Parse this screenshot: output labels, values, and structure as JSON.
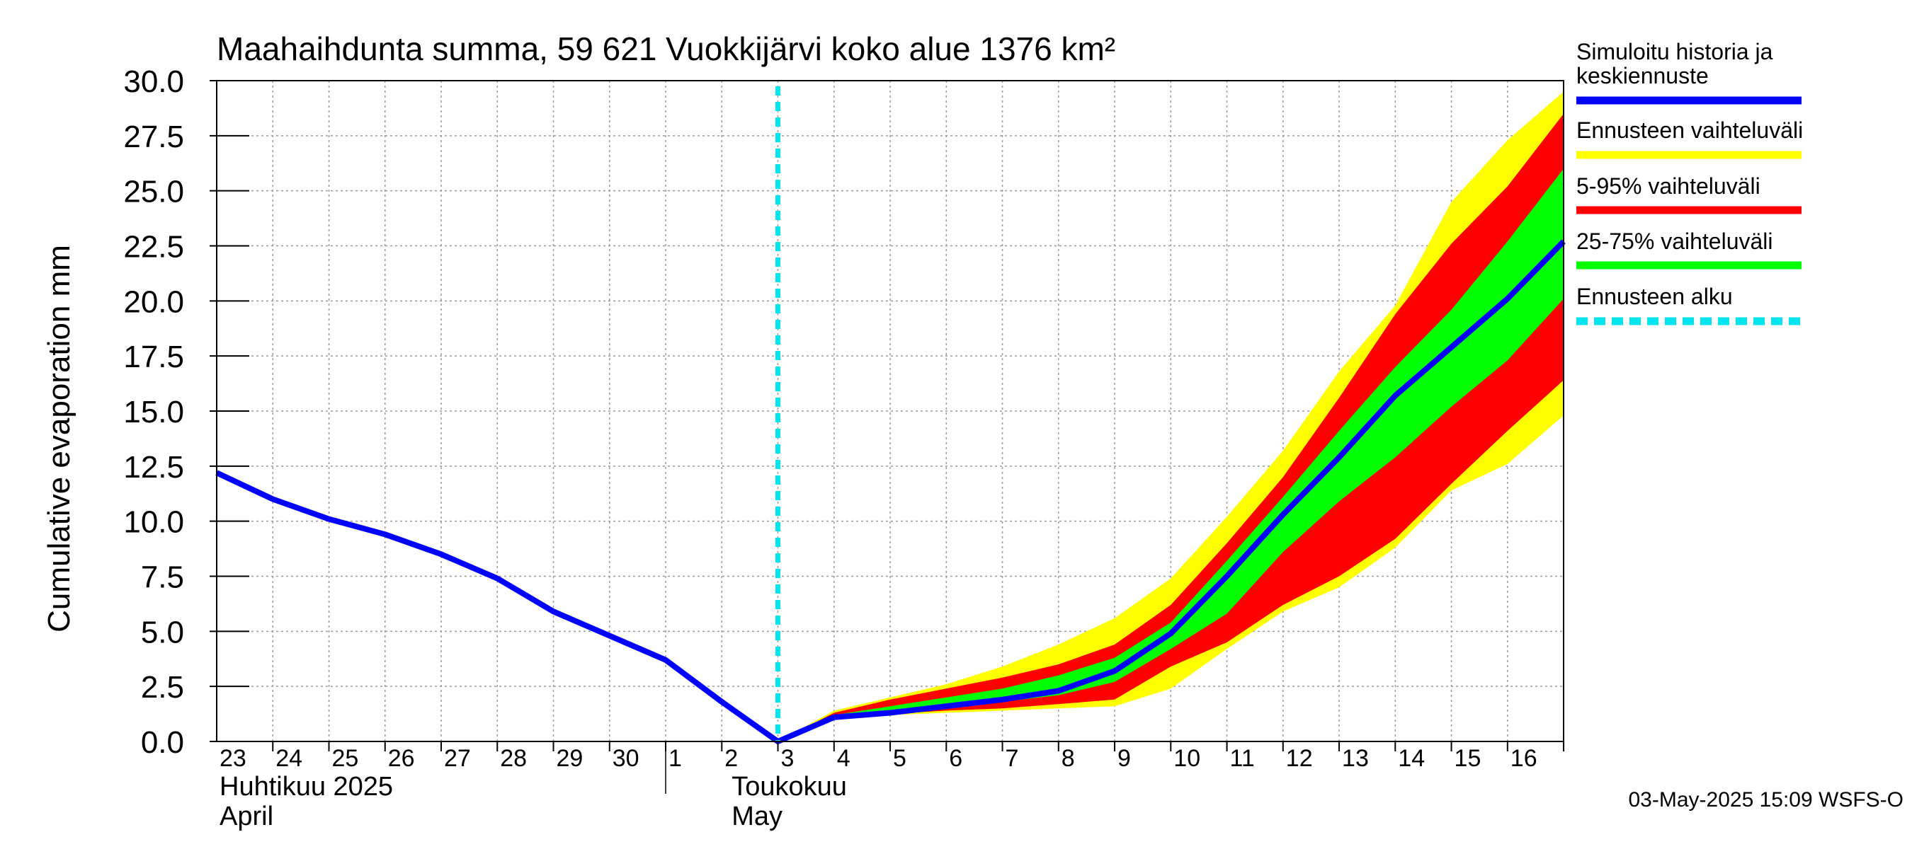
{
  "chart_data": {
    "type": "area",
    "title": "Maahaihdunta summa, 59 621 Vuokkijärvi koko alue 1376 km²",
    "ylabel": "Cumulative evaporation   mm",
    "ylim": [
      0,
      30
    ],
    "yticks": [
      "0.0",
      "2.5",
      "5.0",
      "7.5",
      "10.0",
      "12.5",
      "15.0",
      "17.5",
      "20.0",
      "22.5",
      "25.0",
      "27.5",
      "30.0"
    ],
    "xlim": [
      "2025-04-23",
      "2025-05-16 23:59"
    ],
    "grid": true,
    "x_tick_labels": [
      "23",
      "24",
      "25",
      "26",
      "27",
      "28",
      "29",
      "30",
      "1",
      "2",
      "3",
      "4",
      "5",
      "6",
      "7",
      "8",
      "9",
      "10",
      "11",
      "12",
      "13",
      "14",
      "15",
      "16"
    ],
    "month_labels": [
      {
        "line1": "Huhtikuu  2025",
        "line2": "April"
      },
      {
        "line1": "Toukokuu",
        "line2": "May"
      }
    ],
    "forecast_start": "2025-05-03 00:00",
    "history": {
      "x": [
        "2025-04-23",
        "2025-04-24",
        "2025-04-25",
        "2025-04-26",
        "2025-04-27",
        "2025-04-28",
        "2025-04-29",
        "2025-04-30",
        "2025-05-01",
        "2025-05-02",
        "2025-05-03"
      ],
      "values": [
        12.2,
        11.0,
        10.1,
        9.4,
        8.5,
        7.4,
        5.9,
        4.8,
        3.7,
        1.8,
        0.0
      ]
    },
    "forecast_x": [
      "2025-05-03",
      "2025-05-04",
      "2025-05-05",
      "2025-05-06",
      "2025-05-07",
      "2025-05-08",
      "2025-05-09",
      "2025-05-10",
      "2025-05-11",
      "2025-05-12",
      "2025-05-13",
      "2025-05-14",
      "2025-05-15",
      "2025-05-16",
      "2025-05-16 23:59"
    ],
    "series": [
      {
        "name": "Simuloitu historia ja keskiennuste",
        "color": "#0000ff",
        "values": [
          0.0,
          1.1,
          1.3,
          1.6,
          1.9,
          2.3,
          3.2,
          4.9,
          7.5,
          10.3,
          12.9,
          15.7,
          17.9,
          20.1,
          22.7
        ]
      },
      {
        "name": "Ennusteen vaihteluväli",
        "color": "#ffff00",
        "upper": [
          0.0,
          1.4,
          2.0,
          2.6,
          3.4,
          4.4,
          5.6,
          7.4,
          10.2,
          13.2,
          16.8,
          19.8,
          24.5,
          27.3,
          29.5
        ],
        "lower": [
          0.0,
          1.0,
          1.2,
          1.3,
          1.4,
          1.5,
          1.6,
          2.4,
          4.2,
          5.9,
          7.0,
          8.8,
          11.4,
          12.6,
          14.8
        ]
      },
      {
        "name": "5-95% vaihteluväli",
        "color": "#ff0000",
        "upper": [
          0.0,
          1.3,
          1.9,
          2.4,
          2.9,
          3.5,
          4.4,
          6.2,
          9.0,
          12.0,
          15.6,
          19.4,
          22.6,
          25.2,
          28.5
        ],
        "lower": [
          0.0,
          1.05,
          1.25,
          1.4,
          1.5,
          1.7,
          1.9,
          3.4,
          4.5,
          6.2,
          7.5,
          9.2,
          11.7,
          14.1,
          16.4
        ]
      },
      {
        "name": "25-75% vaihteluväli",
        "color": "#00ff00",
        "upper": [
          0.0,
          1.2,
          1.6,
          2.0,
          2.4,
          3.0,
          3.8,
          5.4,
          8.2,
          11.1,
          14.1,
          17.0,
          19.6,
          22.7,
          26.0
        ],
        "lower": [
          0.0,
          1.1,
          1.35,
          1.6,
          1.8,
          2.1,
          2.7,
          4.2,
          5.8,
          8.6,
          10.9,
          12.9,
          15.2,
          17.3,
          20.1
        ]
      }
    ],
    "forecast_line": {
      "name": "Ennusteen alku",
      "color": "#00e5ee"
    }
  },
  "legend": [
    {
      "line1": "Simuloitu historia ja",
      "line2": "keskiennuste",
      "color": "#0000ff",
      "style": "solid"
    },
    {
      "line1": "Ennusteen vaihteluväli",
      "line2": "",
      "color": "#ffff00",
      "style": "solid"
    },
    {
      "line1": "5-95% vaihteluväli",
      "line2": "",
      "color": "#ff0000",
      "style": "solid"
    },
    {
      "line1": "25-75% vaihteluväli",
      "line2": "",
      "color": "#00ff00",
      "style": "solid"
    },
    {
      "line1": "Ennusteen alku",
      "line2": "",
      "color": "#00e5ee",
      "style": "dashed"
    }
  ],
  "footer": "03-May-2025 15:09 WSFS-O"
}
